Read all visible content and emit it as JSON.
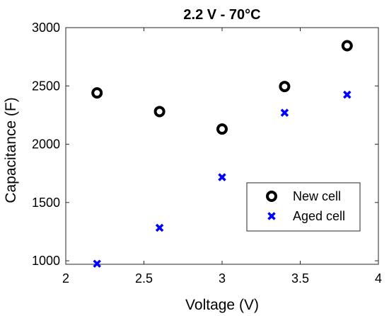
{
  "chart_data": {
    "type": "scatter",
    "title": "2.2 V - 70°C",
    "xlabel": "Voltage (V)",
    "ylabel": "Capacitance (F)",
    "xlim": [
      2,
      4
    ],
    "ylim": [
      970,
      3000
    ],
    "xticks": [
      "2",
      "2.5",
      "3",
      "3.5",
      "4"
    ],
    "yticks": [
      "1000",
      "1500",
      "2000",
      "2500",
      "3000"
    ],
    "legend_position": "lower-right",
    "series": [
      {
        "name": "New cell",
        "marker": "circle",
        "color": "#000000",
        "x": [
          2.2,
          2.6,
          3.0,
          3.4,
          3.8
        ],
        "y": [
          2440,
          2280,
          2130,
          2495,
          2845
        ]
      },
      {
        "name": "Aged cell",
        "marker": "x",
        "color": "#0000ff",
        "x": [
          2.2,
          2.6,
          3.0,
          3.4,
          3.8
        ],
        "y": [
          975,
          1283,
          1717,
          2270,
          2425
        ]
      }
    ]
  }
}
